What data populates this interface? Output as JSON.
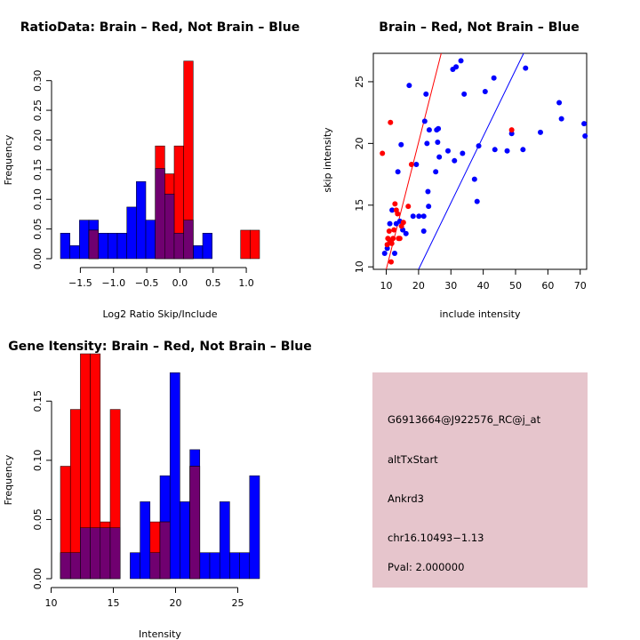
{
  "colors": {
    "brain": "#ff0000",
    "not_brain": "#0000ff",
    "overlap": "#700070",
    "info_bg": "#e6c5cc",
    "pval": "#a00000"
  },
  "chart_data": [
    {
      "type": "bar",
      "title": "RatioData: Brain – Red, Not Brain – Blue",
      "xlabel": "Log2 Ratio Skip/Include",
      "ylabel": "Frequency",
      "xlim": [
        -1.8,
        1.2
      ],
      "ylim": [
        0,
        0.34
      ],
      "xticks": [
        -1.5,
        -1.0,
        -0.5,
        0.0,
        0.5,
        1.0
      ],
      "xtick_labels": [
        "−1.5",
        "−1.0",
        "−0.5",
        "0.0",
        "0.5",
        "1.0"
      ],
      "yticks": [
        0.0,
        0.05,
        0.1,
        0.15,
        0.2,
        0.25,
        0.3
      ],
      "ytick_labels": [
        "0.00",
        "0.05",
        "0.10",
        "0.15",
        "0.20",
        "0.25",
        "0.30"
      ],
      "bin_width": 0.143,
      "series": [
        {
          "name": "Not Brain",
          "color": "blue",
          "bins": [
            [
              -1.8,
              0.043
            ],
            [
              -1.657,
              0.022
            ],
            [
              -1.514,
              0.065
            ],
            [
              -1.371,
              0.065
            ],
            [
              -1.229,
              0.043
            ],
            [
              -1.086,
              0.043
            ],
            [
              -0.943,
              0.043
            ],
            [
              -0.8,
              0.087
            ],
            [
              -0.657,
              0.13
            ],
            [
              -0.514,
              0.065
            ],
            [
              -0.371,
              0.152
            ],
            [
              -0.229,
              0.109
            ],
            [
              -0.086,
              0.043
            ],
            [
              0.057,
              0.065
            ],
            [
              0.2,
              0.022
            ],
            [
              0.343,
              0.043
            ]
          ]
        },
        {
          "name": "Brain",
          "color": "red",
          "bins": [
            [
              -1.371,
              0.048
            ],
            [
              -0.371,
              0.19
            ],
            [
              -0.229,
              0.143
            ],
            [
              -0.086,
              0.19
            ],
            [
              0.057,
              0.333
            ],
            [
              0.914,
              0.048
            ],
            [
              1.057,
              0.048
            ]
          ]
        }
      ]
    },
    {
      "type": "scatter",
      "title": "Brain – Red, Not Brain – Blue",
      "xlabel": "include intensity",
      "ylabel": "skip intensity",
      "xlim": [
        6,
        72
      ],
      "ylim": [
        9.8,
        27.3
      ],
      "xticks": [
        10,
        20,
        30,
        40,
        50,
        60,
        70
      ],
      "yticks": [
        10,
        15,
        20,
        25
      ],
      "lines": [
        {
          "color": "red",
          "from": [
            10,
            9.8
          ],
          "to": [
            27,
            27.3
          ]
        },
        {
          "color": "blue",
          "from": [
            20,
            9.8
          ],
          "to": [
            52.5,
            27.3
          ]
        }
      ],
      "series": [
        {
          "name": "Not Brain",
          "color": "blue",
          "points": [
            [
              9.5,
              11.1
            ],
            [
              10.3,
              11.5
            ],
            [
              11.1,
              13.5
            ],
            [
              11.8,
              14.6
            ],
            [
              12.6,
              11.1
            ],
            [
              13.1,
              13.5
            ],
            [
              13.6,
              17.7
            ],
            [
              14.2,
              13.7
            ],
            [
              14.6,
              19.9
            ],
            [
              15.1,
              13.0
            ],
            [
              16.1,
              12.7
            ],
            [
              17.1,
              24.7
            ],
            [
              18.3,
              14.1
            ],
            [
              19.3,
              18.3
            ],
            [
              20.1,
              14.1
            ],
            [
              21.6,
              12.9
            ],
            [
              21.6,
              14.1
            ],
            [
              21.9,
              21.8
            ],
            [
              22.3,
              24.0
            ],
            [
              22.6,
              20.0
            ],
            [
              22.9,
              16.1
            ],
            [
              23.1,
              14.9
            ],
            [
              23.3,
              21.1
            ],
            [
              25.3,
              17.7
            ],
            [
              25.6,
              21.1
            ],
            [
              25.9,
              20.1
            ],
            [
              26.1,
              21.2
            ],
            [
              26.4,
              18.9
            ],
            [
              29.1,
              19.4
            ],
            [
              30.6,
              26.0
            ],
            [
              31.1,
              18.6
            ],
            [
              31.6,
              26.2
            ],
            [
              33.1,
              26.7
            ],
            [
              33.6,
              19.2
            ],
            [
              34.1,
              24.0
            ],
            [
              37.3,
              17.1
            ],
            [
              38.1,
              15.3
            ],
            [
              38.6,
              19.8
            ],
            [
              40.6,
              24.2
            ],
            [
              43.3,
              25.3
            ],
            [
              43.6,
              19.5
            ],
            [
              47.4,
              19.4
            ],
            [
              48.8,
              20.8
            ],
            [
              52.3,
              19.5
            ],
            [
              53.1,
              26.1
            ],
            [
              57.7,
              20.9
            ],
            [
              63.5,
              23.3
            ],
            [
              64.2,
              22.0
            ],
            [
              71.2,
              21.6
            ],
            [
              71.5,
              20.6
            ]
          ]
        },
        {
          "name": "Brain",
          "color": "red",
          "points": [
            [
              8.8,
              19.2
            ],
            [
              10.3,
              11.8
            ],
            [
              10.5,
              12.3
            ],
            [
              10.9,
              12.9
            ],
            [
              11.1,
              12.1
            ],
            [
              11.3,
              21.7
            ],
            [
              11.5,
              10.4
            ],
            [
              11.7,
              11.9
            ],
            [
              12.1,
              12.3
            ],
            [
              12.4,
              13.0
            ],
            [
              12.7,
              15.1
            ],
            [
              13.1,
              14.6
            ],
            [
              13.5,
              14.3
            ],
            [
              13.8,
              12.3
            ],
            [
              14.2,
              12.3
            ],
            [
              14.7,
              13.3
            ],
            [
              15.3,
              13.6
            ],
            [
              16.8,
              14.9
            ],
            [
              17.8,
              18.3
            ],
            [
              48.8,
              21.1
            ]
          ]
        }
      ]
    },
    {
      "type": "bar",
      "title": "Gene Itensity: Brain – Red, Not Brain – Blue",
      "xlabel": "Intensity",
      "ylabel": "Frequency",
      "xlim": [
        10.75,
        26.75
      ],
      "ylim": [
        0,
        0.19
      ],
      "xticks": [
        10,
        15,
        20,
        25
      ],
      "xtick_labels": [
        "10",
        "15",
        "20",
        "25"
      ],
      "yticks": [
        0.0,
        0.05,
        0.1,
        0.15
      ],
      "ytick_labels": [
        "0.00",
        "0.05",
        "0.10",
        "0.15"
      ],
      "bin_width": 0.8,
      "series": [
        {
          "name": "Not Brain",
          "color": "blue",
          "bins": [
            [
              10.75,
              0.022
            ],
            [
              11.55,
              0.022
            ],
            [
              12.35,
              0.043
            ],
            [
              13.15,
              0.043
            ],
            [
              13.95,
              0.043
            ],
            [
              14.75,
              0.043
            ],
            [
              16.35,
              0.022
            ],
            [
              17.15,
              0.065
            ],
            [
              17.95,
              0.022
            ],
            [
              18.75,
              0.087
            ],
            [
              19.55,
              0.174
            ],
            [
              20.35,
              0.065
            ],
            [
              21.15,
              0.109
            ],
            [
              21.95,
              0.022
            ],
            [
              22.75,
              0.022
            ],
            [
              23.55,
              0.065
            ],
            [
              24.35,
              0.022
            ],
            [
              25.15,
              0.022
            ],
            [
              25.95,
              0.087
            ]
          ]
        },
        {
          "name": "Brain",
          "color": "red",
          "bins": [
            [
              10.75,
              0.095
            ],
            [
              11.55,
              0.143
            ],
            [
              12.35,
              0.19
            ],
            [
              13.15,
              0.19
            ],
            [
              13.95,
              0.048
            ],
            [
              14.75,
              0.143
            ],
            [
              17.95,
              0.048
            ],
            [
              18.75,
              0.048
            ],
            [
              21.15,
              0.095
            ]
          ]
        }
      ]
    }
  ],
  "info_panel": {
    "probe_id": "G6913664@J922576_RC@j_at",
    "event_type": "altTxStart",
    "gene": "Ankrd3",
    "location": "chr16.10493−1.13",
    "pval": "Pval: 2.000000"
  }
}
